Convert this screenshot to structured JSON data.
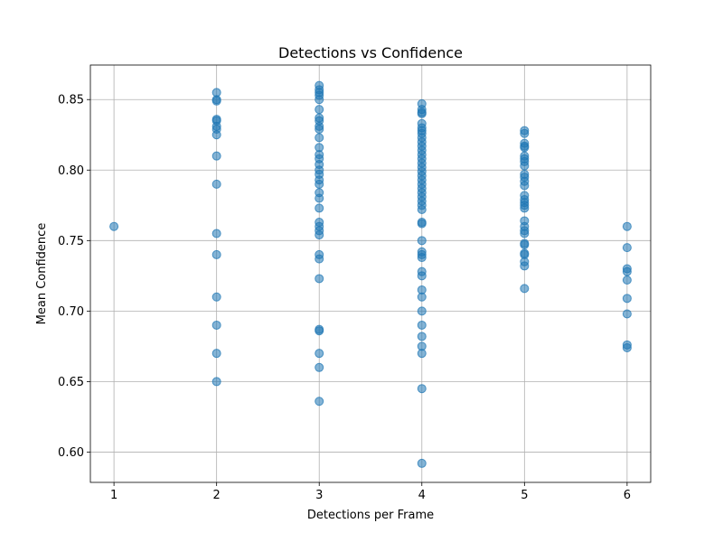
{
  "chart_data": {
    "type": "scatter",
    "title": "Detections vs Confidence",
    "xlabel": "Detections per Frame",
    "ylabel": "Mean Confidence",
    "xlim": [
      0.77,
      6.23
    ],
    "ylim": [
      0.5785,
      0.8745
    ],
    "xticks": [
      1,
      2,
      3,
      4,
      5,
      6
    ],
    "xtick_labels": [
      "1",
      "2",
      "3",
      "4",
      "5",
      "6"
    ],
    "yticks": [
      0.6,
      0.65,
      0.7,
      0.75,
      0.8,
      0.85
    ],
    "ytick_labels": [
      "0.60",
      "0.65",
      "0.70",
      "0.75",
      "0.80",
      "0.85"
    ],
    "grid": true,
    "marker_color": "#1f77b4",
    "series": [
      {
        "points": [
          {
            "x": 1,
            "y": 0.76
          },
          {
            "x": 2,
            "y": 0.855
          },
          {
            "x": 2,
            "y": 0.85
          },
          {
            "x": 2,
            "y": 0.849
          },
          {
            "x": 2,
            "y": 0.836
          },
          {
            "x": 2,
            "y": 0.835
          },
          {
            "x": 2,
            "y": 0.831
          },
          {
            "x": 2,
            "y": 0.829
          },
          {
            "x": 2,
            "y": 0.825
          },
          {
            "x": 2,
            "y": 0.81
          },
          {
            "x": 2,
            "y": 0.79
          },
          {
            "x": 2,
            "y": 0.755
          },
          {
            "x": 2,
            "y": 0.74
          },
          {
            "x": 2,
            "y": 0.71
          },
          {
            "x": 2,
            "y": 0.69
          },
          {
            "x": 2,
            "y": 0.67
          },
          {
            "x": 2,
            "y": 0.65
          },
          {
            "x": 3,
            "y": 0.86
          },
          {
            "x": 3,
            "y": 0.857
          },
          {
            "x": 3,
            "y": 0.855
          },
          {
            "x": 3,
            "y": 0.853
          },
          {
            "x": 3,
            "y": 0.85
          },
          {
            "x": 3,
            "y": 0.843
          },
          {
            "x": 3,
            "y": 0.837
          },
          {
            "x": 3,
            "y": 0.835
          },
          {
            "x": 3,
            "y": 0.831
          },
          {
            "x": 3,
            "y": 0.829
          },
          {
            "x": 3,
            "y": 0.823
          },
          {
            "x": 3,
            "y": 0.816
          },
          {
            "x": 3,
            "y": 0.811
          },
          {
            "x": 3,
            "y": 0.808
          },
          {
            "x": 3,
            "y": 0.804
          },
          {
            "x": 3,
            "y": 0.8
          },
          {
            "x": 3,
            "y": 0.797
          },
          {
            "x": 3,
            "y": 0.793
          },
          {
            "x": 3,
            "y": 0.79
          },
          {
            "x": 3,
            "y": 0.784
          },
          {
            "x": 3,
            "y": 0.78
          },
          {
            "x": 3,
            "y": 0.773
          },
          {
            "x": 3,
            "y": 0.763
          },
          {
            "x": 3,
            "y": 0.76
          },
          {
            "x": 3,
            "y": 0.757
          },
          {
            "x": 3,
            "y": 0.754
          },
          {
            "x": 3,
            "y": 0.74
          },
          {
            "x": 3,
            "y": 0.737
          },
          {
            "x": 3,
            "y": 0.723
          },
          {
            "x": 3,
            "y": 0.687
          },
          {
            "x": 3,
            "y": 0.686
          },
          {
            "x": 3,
            "y": 0.67
          },
          {
            "x": 3,
            "y": 0.66
          },
          {
            "x": 3,
            "y": 0.636
          },
          {
            "x": 4,
            "y": 0.847
          },
          {
            "x": 4,
            "y": 0.843
          },
          {
            "x": 4,
            "y": 0.841
          },
          {
            "x": 4,
            "y": 0.84
          },
          {
            "x": 4,
            "y": 0.833
          },
          {
            "x": 4,
            "y": 0.83
          },
          {
            "x": 4,
            "y": 0.828
          },
          {
            "x": 4,
            "y": 0.826
          },
          {
            "x": 4,
            "y": 0.823
          },
          {
            "x": 4,
            "y": 0.82
          },
          {
            "x": 4,
            "y": 0.817
          },
          {
            "x": 4,
            "y": 0.814
          },
          {
            "x": 4,
            "y": 0.811
          },
          {
            "x": 4,
            "y": 0.808
          },
          {
            "x": 4,
            "y": 0.805
          },
          {
            "x": 4,
            "y": 0.802
          },
          {
            "x": 4,
            "y": 0.799
          },
          {
            "x": 4,
            "y": 0.796
          },
          {
            "x": 4,
            "y": 0.793
          },
          {
            "x": 4,
            "y": 0.79
          },
          {
            "x": 4,
            "y": 0.787
          },
          {
            "x": 4,
            "y": 0.784
          },
          {
            "x": 4,
            "y": 0.781
          },
          {
            "x": 4,
            "y": 0.778
          },
          {
            "x": 4,
            "y": 0.775
          },
          {
            "x": 4,
            "y": 0.772
          },
          {
            "x": 4,
            "y": 0.763
          },
          {
            "x": 4,
            "y": 0.762
          },
          {
            "x": 4,
            "y": 0.75
          },
          {
            "x": 4,
            "y": 0.742
          },
          {
            "x": 4,
            "y": 0.74
          },
          {
            "x": 4,
            "y": 0.738
          },
          {
            "x": 4,
            "y": 0.728
          },
          {
            "x": 4,
            "y": 0.725
          },
          {
            "x": 4,
            "y": 0.715
          },
          {
            "x": 4,
            "y": 0.71
          },
          {
            "x": 4,
            "y": 0.7
          },
          {
            "x": 4,
            "y": 0.69
          },
          {
            "x": 4,
            "y": 0.682
          },
          {
            "x": 4,
            "y": 0.675
          },
          {
            "x": 4,
            "y": 0.67
          },
          {
            "x": 4,
            "y": 0.645
          },
          {
            "x": 4,
            "y": 0.592
          },
          {
            "x": 5,
            "y": 0.828
          },
          {
            "x": 5,
            "y": 0.826
          },
          {
            "x": 5,
            "y": 0.819
          },
          {
            "x": 5,
            "y": 0.817
          },
          {
            "x": 5,
            "y": 0.816
          },
          {
            "x": 5,
            "y": 0.81
          },
          {
            "x": 5,
            "y": 0.808
          },
          {
            "x": 5,
            "y": 0.806
          },
          {
            "x": 5,
            "y": 0.803
          },
          {
            "x": 5,
            "y": 0.797
          },
          {
            "x": 5,
            "y": 0.795
          },
          {
            "x": 5,
            "y": 0.792
          },
          {
            "x": 5,
            "y": 0.789
          },
          {
            "x": 5,
            "y": 0.782
          },
          {
            "x": 5,
            "y": 0.779
          },
          {
            "x": 5,
            "y": 0.777
          },
          {
            "x": 5,
            "y": 0.775
          },
          {
            "x": 5,
            "y": 0.773
          },
          {
            "x": 5,
            "y": 0.764
          },
          {
            "x": 5,
            "y": 0.76
          },
          {
            "x": 5,
            "y": 0.757
          },
          {
            "x": 5,
            "y": 0.755
          },
          {
            "x": 5,
            "y": 0.748
          },
          {
            "x": 5,
            "y": 0.747
          },
          {
            "x": 5,
            "y": 0.741
          },
          {
            "x": 5,
            "y": 0.74
          },
          {
            "x": 5,
            "y": 0.735
          },
          {
            "x": 5,
            "y": 0.732
          },
          {
            "x": 5,
            "y": 0.716
          },
          {
            "x": 6,
            "y": 0.76
          },
          {
            "x": 6,
            "y": 0.745
          },
          {
            "x": 6,
            "y": 0.73
          },
          {
            "x": 6,
            "y": 0.728
          },
          {
            "x": 6,
            "y": 0.722
          },
          {
            "x": 6,
            "y": 0.709
          },
          {
            "x": 6,
            "y": 0.698
          },
          {
            "x": 6,
            "y": 0.676
          },
          {
            "x": 6,
            "y": 0.674
          }
        ]
      }
    ]
  }
}
